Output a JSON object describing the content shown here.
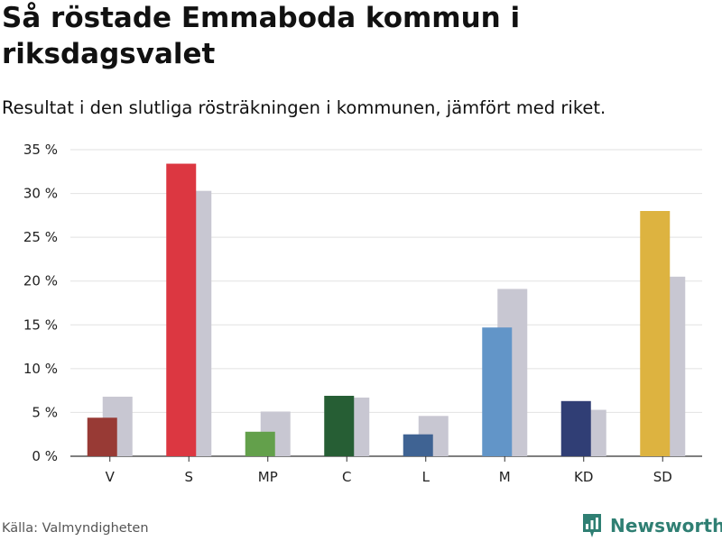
{
  "colors": {
    "grid": "#e2e2e2",
    "axis": "#333333",
    "comparison": "#c8c7d2",
    "brand": "#2f7f73"
  },
  "chart_data": {
    "type": "bar",
    "title": "Så röstade Emmaboda kommun i riksdagsvalet",
    "subtitle": "Resultat i den slutliga rösträkningen i kommunen, jämfört med riket.",
    "categories": [
      "V",
      "S",
      "MP",
      "C",
      "L",
      "M",
      "KD",
      "SD"
    ],
    "category_colors": [
      "#983a35",
      "#dc3741",
      "#63a04b",
      "#265e34",
      "#3f6393",
      "#6295c8",
      "#303e75",
      "#ddb340"
    ],
    "series": [
      {
        "values": [
          4.4,
          33.4,
          2.8,
          6.9,
          2.5,
          14.7,
          6.3,
          28.0
        ]
      },
      {
        "values": [
          6.8,
          30.3,
          5.1,
          6.7,
          4.6,
          19.1,
          5.3,
          20.5
        ]
      }
    ],
    "ylim": [
      0,
      35
    ],
    "yticks": [
      0,
      5,
      10,
      15,
      20,
      25,
      30,
      35
    ],
    "ytick_labels": [
      "0 %",
      "5 %",
      "10 %",
      "15 %",
      "20 %",
      "25 %",
      "30 %",
      "35 %"
    ],
    "grid": true,
    "legend": false
  },
  "source": "Källa: Valmyndigheten",
  "logo": {
    "text": "Newsworthy",
    "icon": "bar-chart-icon"
  }
}
